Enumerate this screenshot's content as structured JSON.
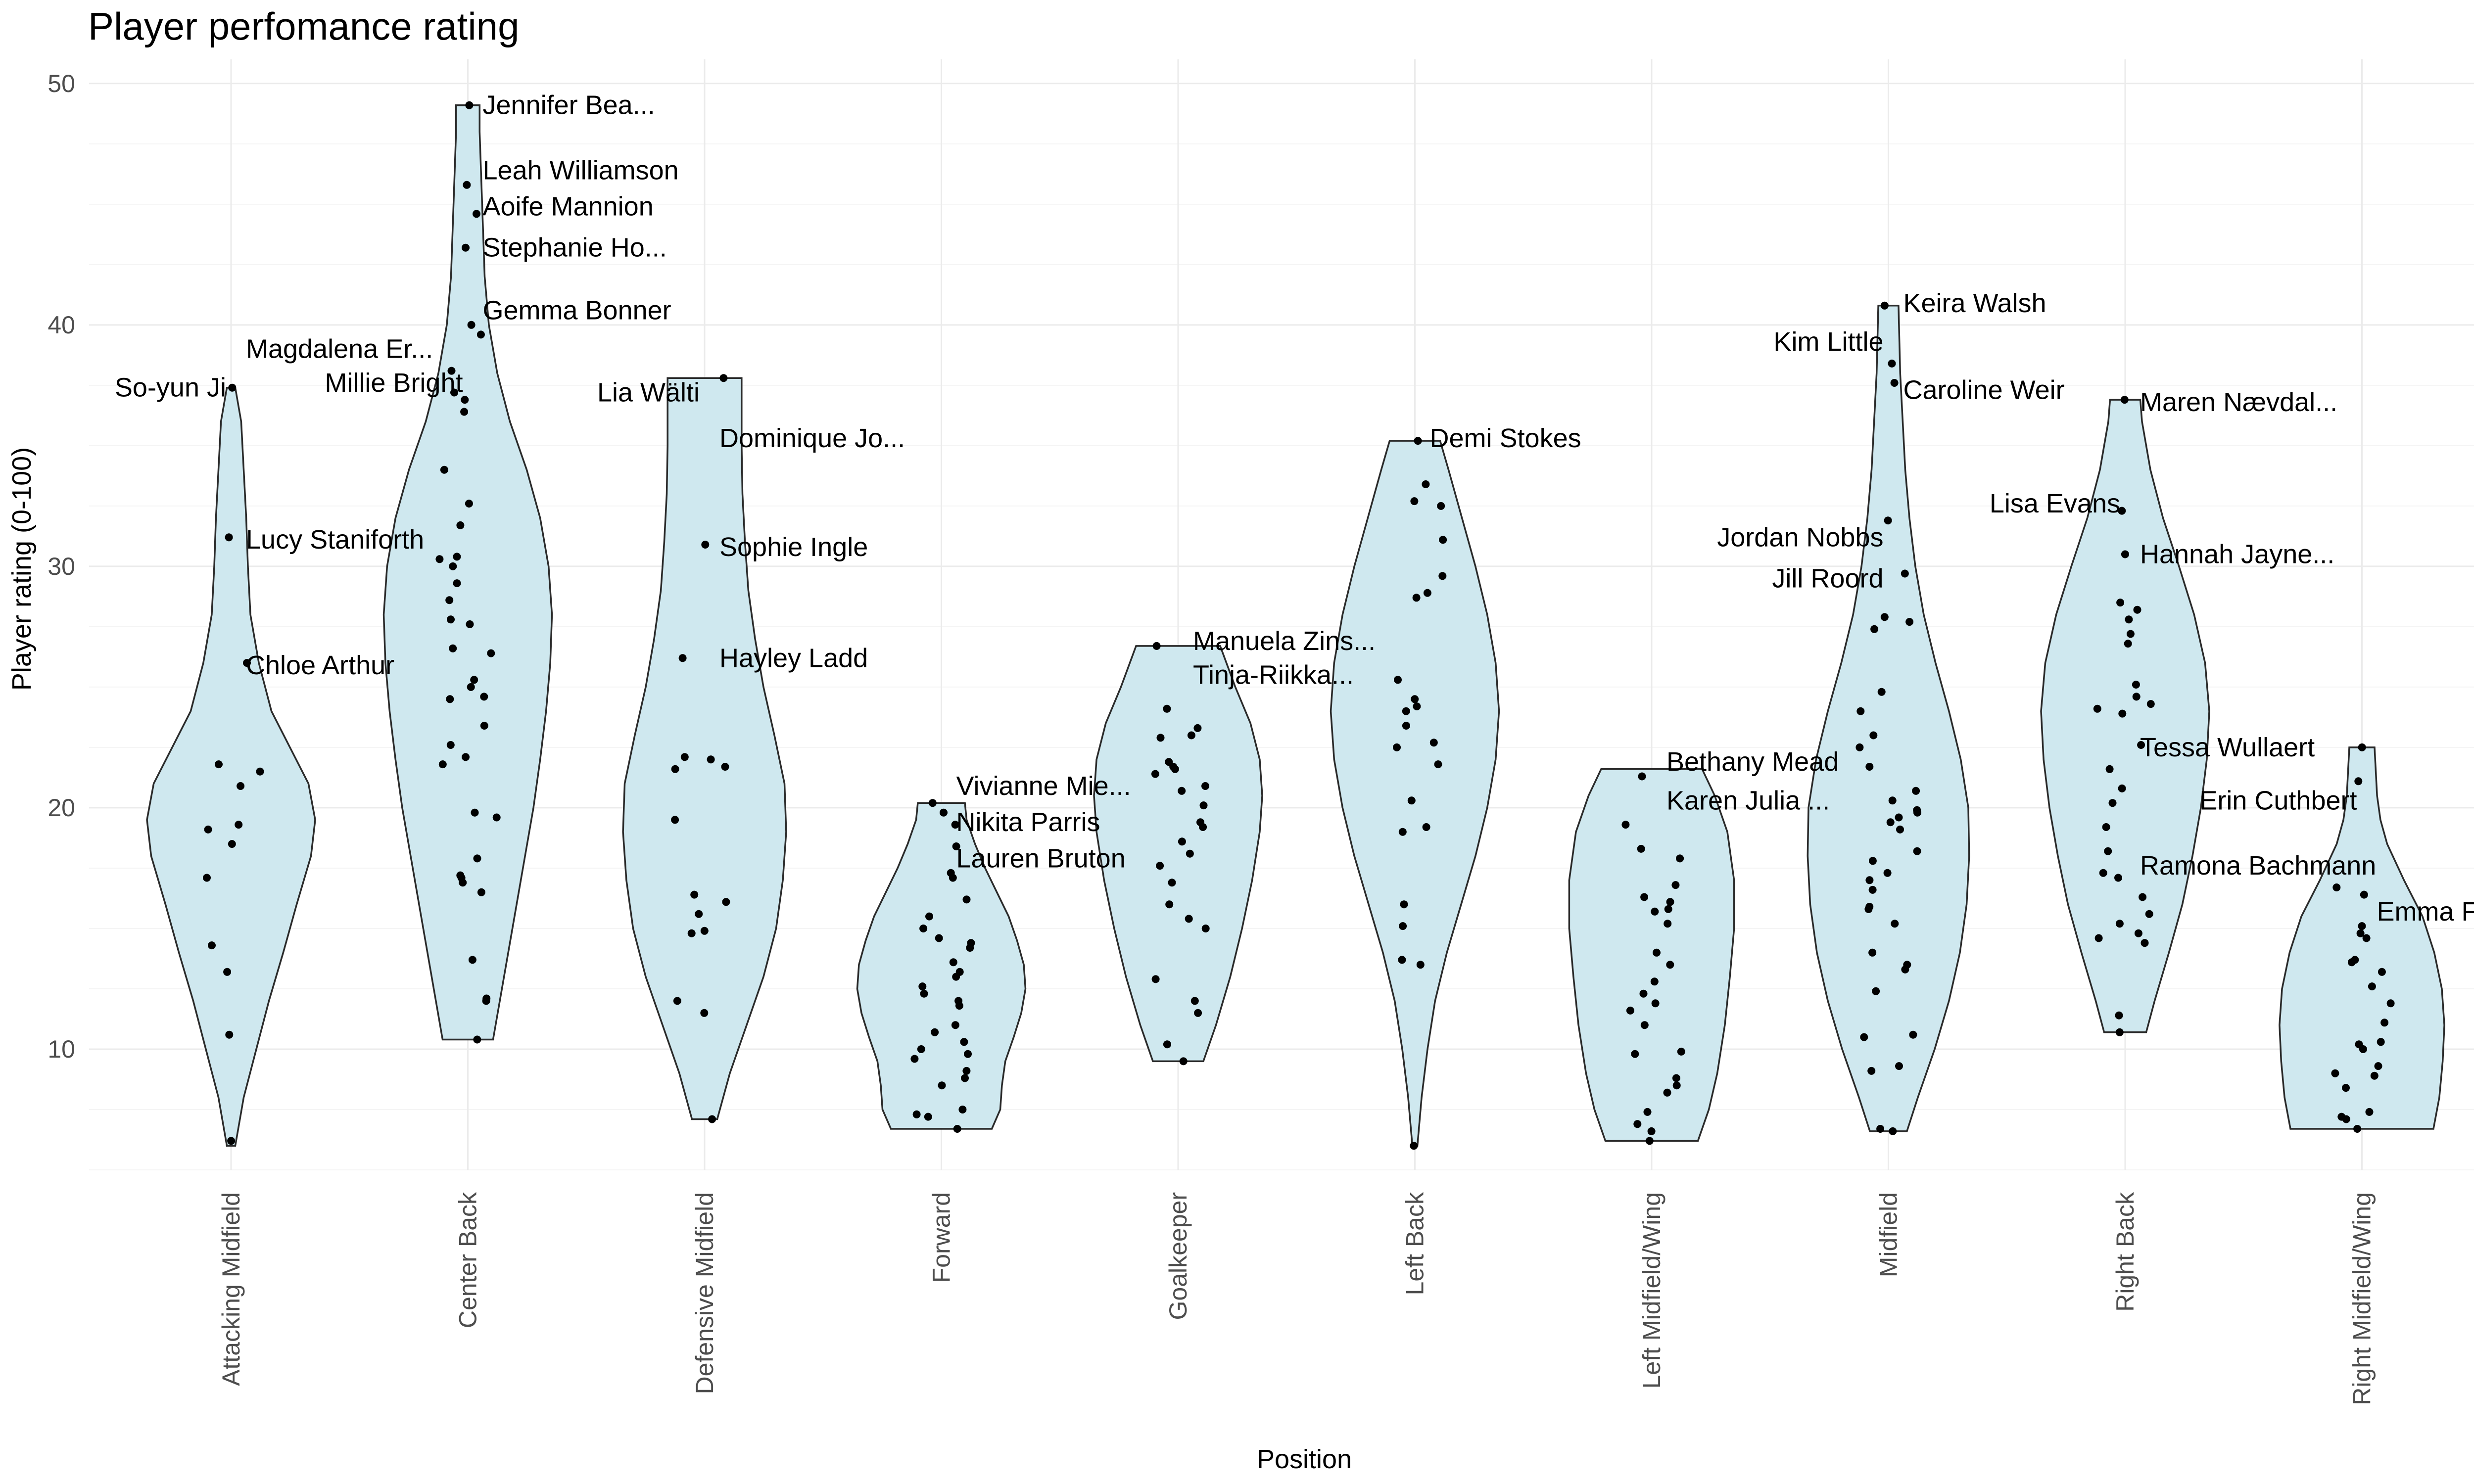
{
  "chart_data": {
    "type": "violin",
    "title": "Player perfomance rating",
    "xlabel": "Position",
    "ylabel": "Player rating (0-100)",
    "ylim": [
      5,
      51
    ],
    "yticks": [
      10,
      20,
      30,
      40,
      50
    ],
    "grid": true,
    "categories": [
      "Attacking Midfield",
      "Center Back",
      "Defensive Midfield",
      "Forward",
      "Goalkeeper",
      "Left Back",
      "Left Midfield/Wing",
      "Midfield",
      "Right Back",
      "Right Midfield/Wing"
    ],
    "groups": [
      {
        "category": "Attacking Midfield",
        "density": [
          [
            6,
            0.05
          ],
          [
            8,
            0.15
          ],
          [
            10,
            0.3
          ],
          [
            12,
            0.45
          ],
          [
            14,
            0.62
          ],
          [
            16,
            0.78
          ],
          [
            18,
            0.95
          ],
          [
            19.5,
            1.0
          ],
          [
            21,
            0.92
          ],
          [
            22.5,
            0.7
          ],
          [
            24,
            0.48
          ],
          [
            26,
            0.33
          ],
          [
            28,
            0.23
          ],
          [
            30,
            0.2
          ],
          [
            32,
            0.18
          ],
          [
            34,
            0.15
          ],
          [
            36,
            0.12
          ],
          [
            37.4,
            0.05
          ]
        ],
        "points": [
          6.2,
          10.6,
          13.2,
          14.3,
          17.1,
          18.5,
          19.1,
          19.3,
          20.9,
          21.5,
          21.8,
          26.0,
          31.2,
          37.4
        ],
        "labels": [
          {
            "text": "So-yun Ji",
            "y": 37.4,
            "side": "left"
          },
          {
            "text": "Magdalena Er...",
            "y": 39.0,
            "side": "right"
          },
          {
            "text": "Lucy Staniforth",
            "y": 31.1,
            "side": "right"
          },
          {
            "text": "Chloe Arthur",
            "y": 25.9,
            "side": "right"
          }
        ]
      },
      {
        "category": "Center Back",
        "density": [
          [
            10.4,
            0.3
          ],
          [
            12,
            0.38
          ],
          [
            14,
            0.48
          ],
          [
            16,
            0.58
          ],
          [
            18,
            0.68
          ],
          [
            20,
            0.78
          ],
          [
            22,
            0.86
          ],
          [
            24,
            0.93
          ],
          [
            26,
            0.98
          ],
          [
            28,
            1.0
          ],
          [
            30,
            0.96
          ],
          [
            32,
            0.86
          ],
          [
            34,
            0.7
          ],
          [
            36,
            0.5
          ],
          [
            38,
            0.35
          ],
          [
            40,
            0.25
          ],
          [
            42,
            0.2
          ],
          [
            44,
            0.18
          ],
          [
            46,
            0.16
          ],
          [
            48,
            0.14
          ],
          [
            49.1,
            0.14
          ]
        ],
        "points": [
          10.4,
          12.0,
          12.1,
          13.7,
          16.5,
          16.9,
          17.1,
          17.2,
          17.9,
          19.6,
          19.8,
          21.8,
          22.1,
          22.6,
          23.4,
          24.5,
          24.6,
          25.0,
          25.3,
          26.4,
          26.6,
          27.6,
          27.8,
          28.6,
          29.3,
          30.0,
          30.3,
          30.4,
          31.7,
          32.6,
          34.0,
          36.4,
          36.9,
          37.2,
          38.1,
          39.6,
          40.0,
          43.2,
          44.6,
          45.8,
          49.1
        ],
        "labels": [
          {
            "text": "Jennifer Bea...",
            "y": 49.1,
            "side": "right"
          },
          {
            "text": "Leah Williamson",
            "y": 46.4,
            "side": "right"
          },
          {
            "text": "Aoife Mannion",
            "y": 44.9,
            "side": "right"
          },
          {
            "text": "Stephanie Ho...",
            "y": 43.2,
            "side": "right"
          },
          {
            "text": "Gemma Bonner",
            "y": 40.6,
            "side": "right"
          },
          {
            "text": "Millie Bright",
            "y": 37.6,
            "side": "left"
          }
        ]
      },
      {
        "category": "Defensive Midfield",
        "density": [
          [
            7.1,
            0.15
          ],
          [
            9,
            0.3
          ],
          [
            11,
            0.5
          ],
          [
            13,
            0.7
          ],
          [
            15,
            0.85
          ],
          [
            17,
            0.93
          ],
          [
            19,
            0.97
          ],
          [
            21,
            0.95
          ],
          [
            23,
            0.83
          ],
          [
            25,
            0.7
          ],
          [
            27,
            0.6
          ],
          [
            29,
            0.52
          ],
          [
            31,
            0.48
          ],
          [
            33,
            0.45
          ],
          [
            35,
            0.44
          ],
          [
            37.8,
            0.44
          ]
        ],
        "points": [
          7.1,
          11.5,
          12.0,
          14.8,
          14.9,
          15.6,
          16.1,
          16.4,
          19.5,
          21.6,
          21.7,
          22.0,
          22.1,
          26.2,
          30.9,
          37.8
        ],
        "labels": [
          {
            "text": "Lia Wälti",
            "y": 37.2,
            "side": "left"
          },
          {
            "text": "Dominique Jo...",
            "y": 35.3,
            "side": "right"
          },
          {
            "text": "Sophie Ingle",
            "y": 30.8,
            "side": "right"
          },
          {
            "text": "Hayley Ladd",
            "y": 26.2,
            "side": "right"
          }
        ]
      },
      {
        "category": "Forward",
        "density": [
          [
            6.7,
            0.6
          ],
          [
            7.5,
            0.7
          ],
          [
            8.5,
            0.72
          ],
          [
            9.5,
            0.76
          ],
          [
            10.5,
            0.86
          ],
          [
            11.5,
            0.95
          ],
          [
            12.5,
            1.0
          ],
          [
            13.5,
            0.98
          ],
          [
            14.5,
            0.9
          ],
          [
            15.5,
            0.8
          ],
          [
            16.5,
            0.66
          ],
          [
            17.5,
            0.52
          ],
          [
            18.5,
            0.4
          ],
          [
            19.5,
            0.3
          ],
          [
            20.2,
            0.28
          ]
        ],
        "points": [
          6.7,
          7.2,
          7.3,
          7.5,
          8.5,
          8.8,
          9.1,
          9.6,
          9.8,
          10.0,
          10.3,
          10.7,
          11.0,
          11.8,
          12.0,
          12.3,
          12.6,
          13.0,
          13.2,
          13.6,
          14.2,
          14.4,
          14.6,
          15.0,
          15.5,
          16.2,
          17.1,
          17.3,
          18.4,
          19.3,
          19.8,
          20.2
        ],
        "labels": [
          {
            "text": "Vivianne Mie...",
            "y": 20.9,
            "side": "right"
          },
          {
            "text": "Nikita Parris",
            "y": 19.4,
            "side": "right"
          },
          {
            "text": "Lauren Bruton",
            "y": 17.9,
            "side": "right"
          }
        ]
      },
      {
        "category": "Goalkeeper",
        "density": [
          [
            9.5,
            0.3
          ],
          [
            11,
            0.45
          ],
          [
            13,
            0.62
          ],
          [
            15,
            0.76
          ],
          [
            17,
            0.88
          ],
          [
            19,
            0.97
          ],
          [
            20.5,
            1.0
          ],
          [
            22,
            0.97
          ],
          [
            23.5,
            0.86
          ],
          [
            25,
            0.68
          ],
          [
            26.7,
            0.5
          ]
        ],
        "points": [
          9.5,
          10.2,
          11.5,
          12.0,
          12.9,
          15.0,
          15.4,
          16.0,
          16.9,
          17.6,
          18.1,
          18.6,
          19.2,
          19.4,
          20.1,
          20.7,
          20.9,
          21.4,
          21.6,
          21.7,
          21.9,
          22.9,
          23.0,
          23.3,
          24.1,
          26.7
        ],
        "labels": [
          {
            "text": "Manuela Zins...",
            "y": 26.9,
            "side": "right"
          },
          {
            "text": "Tinja-Riikka...",
            "y": 25.5,
            "side": "right"
          }
        ]
      },
      {
        "category": "Left Back",
        "density": [
          [
            6,
            0.03
          ],
          [
            8,
            0.08
          ],
          [
            10,
            0.15
          ],
          [
            12,
            0.24
          ],
          [
            14,
            0.38
          ],
          [
            16,
            0.55
          ],
          [
            18,
            0.72
          ],
          [
            20,
            0.86
          ],
          [
            22,
            0.96
          ],
          [
            24,
            1.0
          ],
          [
            26,
            0.96
          ],
          [
            28,
            0.86
          ],
          [
            30,
            0.72
          ],
          [
            32,
            0.56
          ],
          [
            34,
            0.4
          ],
          [
            35.2,
            0.3
          ]
        ],
        "points": [
          6.0,
          13.5,
          13.7,
          15.1,
          16.0,
          19.0,
          19.2,
          20.3,
          21.8,
          22.5,
          22.7,
          23.4,
          24.0,
          24.2,
          24.5,
          25.3,
          28.7,
          28.9,
          29.6,
          31.1,
          32.5,
          32.7,
          33.4,
          35.2
        ],
        "labels": [
          {
            "text": "Demi Stokes",
            "y": 35.3,
            "side": "right"
          }
        ]
      },
      {
        "category": "Left Midfield/Wing",
        "density": [
          [
            6.2,
            0.55
          ],
          [
            7.5,
            0.68
          ],
          [
            9,
            0.78
          ],
          [
            11,
            0.87
          ],
          [
            13,
            0.93
          ],
          [
            15,
            0.98
          ],
          [
            17,
            0.98
          ],
          [
            19,
            0.9
          ],
          [
            20.5,
            0.75
          ],
          [
            21.6,
            0.6
          ]
        ],
        "points": [
          6.2,
          6.6,
          6.9,
          7.4,
          8.2,
          8.5,
          8.8,
          9.8,
          9.9,
          11.0,
          11.6,
          11.9,
          12.3,
          12.8,
          13.5,
          14.0,
          15.2,
          15.7,
          15.8,
          16.1,
          16.3,
          16.8,
          17.9,
          18.3,
          19.3,
          21.3
        ],
        "labels": [
          {
            "text": "Bethany Mead",
            "y": 21.9,
            "side": "right"
          },
          {
            "text": "Karen Julia ...",
            "y": 20.3,
            "side": "right"
          }
        ]
      },
      {
        "category": "Midfield",
        "density": [
          [
            6.6,
            0.22
          ],
          [
            8,
            0.35
          ],
          [
            10,
            0.55
          ],
          [
            12,
            0.72
          ],
          [
            14,
            0.85
          ],
          [
            16,
            0.93
          ],
          [
            18,
            0.96
          ],
          [
            20,
            0.95
          ],
          [
            22,
            0.86
          ],
          [
            24,
            0.72
          ],
          [
            26,
            0.56
          ],
          [
            28,
            0.42
          ],
          [
            30,
            0.32
          ],
          [
            32,
            0.25
          ],
          [
            34,
            0.2
          ],
          [
            36,
            0.17
          ],
          [
            38,
            0.14
          ],
          [
            40.8,
            0.12
          ]
        ],
        "points": [
          6.6,
          6.7,
          9.1,
          9.3,
          10.5,
          10.6,
          12.4,
          13.3,
          13.5,
          14.0,
          15.2,
          15.8,
          15.9,
          16.6,
          17.0,
          17.3,
          17.8,
          18.2,
          19.1,
          19.4,
          19.6,
          19.8,
          19.9,
          20.3,
          20.7,
          21.7,
          22.5,
          23.0,
          24.0,
          24.8,
          27.4,
          27.7,
          27.9,
          29.7,
          31.9,
          37.6,
          38.4,
          40.8
        ],
        "labels": [
          {
            "text": "Keira Walsh",
            "y": 40.9,
            "side": "right"
          },
          {
            "text": "Kim Little",
            "y": 39.3,
            "side": "left"
          },
          {
            "text": "Caroline Weir",
            "y": 37.3,
            "side": "right"
          },
          {
            "text": "Jordan Nobbs",
            "y": 31.2,
            "side": "left"
          },
          {
            "text": "Jill Roord",
            "y": 29.5,
            "side": "left"
          }
        ]
      },
      {
        "category": "Right Back",
        "density": [
          [
            10.7,
            0.25
          ],
          [
            12,
            0.35
          ],
          [
            14,
            0.52
          ],
          [
            16,
            0.68
          ],
          [
            18,
            0.8
          ],
          [
            20,
            0.9
          ],
          [
            22,
            0.97
          ],
          [
            24,
            1.0
          ],
          [
            26,
            0.95
          ],
          [
            28,
            0.82
          ],
          [
            30,
            0.64
          ],
          [
            32,
            0.45
          ],
          [
            34,
            0.3
          ],
          [
            36,
            0.2
          ],
          [
            36.9,
            0.18
          ]
        ],
        "points": [
          10.7,
          11.4,
          14.4,
          14.6,
          14.8,
          15.2,
          15.6,
          16.3,
          17.1,
          17.3,
          18.2,
          19.2,
          20.2,
          20.8,
          21.6,
          22.6,
          23.9,
          24.1,
          24.3,
          24.6,
          25.1,
          26.8,
          27.2,
          27.8,
          28.2,
          28.5,
          30.5,
          32.3,
          36.9
        ],
        "labels": [
          {
            "text": "Maren Nævdal...",
            "y": 36.8,
            "side": "right"
          },
          {
            "text": "Lisa Evans",
            "y": 32.6,
            "side": "left"
          },
          {
            "text": "Hannah Jayne...",
            "y": 30.5,
            "side": "right"
          },
          {
            "text": "Tessa Wullaert",
            "y": 22.5,
            "side": "right"
          },
          {
            "text": "Ramona Bachmann",
            "y": 17.6,
            "side": "right"
          }
        ]
      },
      {
        "category": "Right Midfield/Wing",
        "density": [
          [
            6.7,
            0.85
          ],
          [
            8,
            0.92
          ],
          [
            9.5,
            0.96
          ],
          [
            11,
            0.98
          ],
          [
            12.5,
            0.95
          ],
          [
            14,
            0.86
          ],
          [
            15.5,
            0.72
          ],
          [
            17,
            0.5
          ],
          [
            18.5,
            0.3
          ],
          [
            19.5,
            0.22
          ],
          [
            20.5,
            0.18
          ],
          [
            22.5,
            0.15
          ]
        ],
        "points": [
          6.7,
          7.1,
          7.2,
          7.4,
          8.4,
          8.9,
          9.0,
          9.3,
          10.0,
          10.2,
          10.3,
          11.1,
          11.9,
          12.6,
          13.2,
          13.6,
          13.7,
          14.6,
          14.8,
          15.1,
          16.4,
          16.7,
          21.1,
          22.5
        ],
        "labels": [
          {
            "text": "Erin Cuthbert",
            "y": 20.3,
            "side": "left"
          },
          {
            "text": "Emma Follis",
            "y": 15.7,
            "side": "right"
          }
        ]
      }
    ]
  }
}
